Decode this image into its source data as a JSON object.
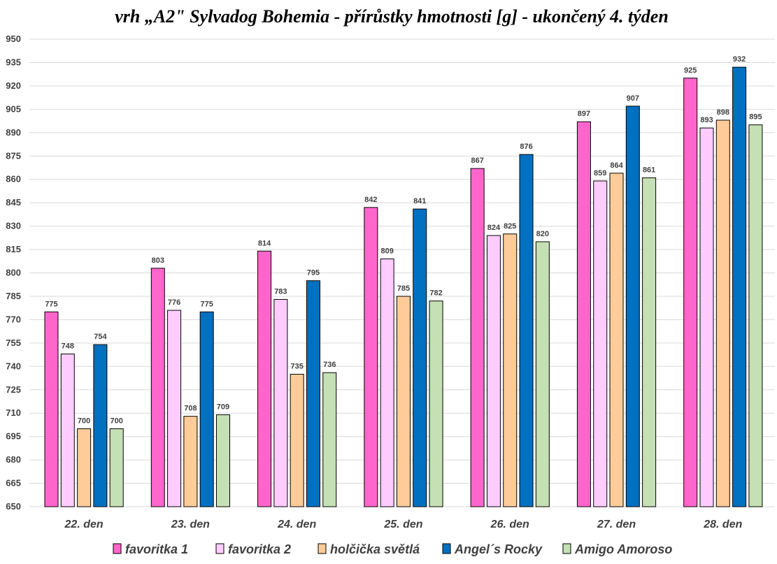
{
  "chart_data": {
    "type": "bar",
    "title": "vrh „A2\" Sylvadog Bohemia - přírůstky hmotnosti [g] - ukončený 4. týden",
    "categories": [
      "22. den",
      "23. den",
      "24. den",
      "25. den",
      "26. den",
      "27. den",
      "28. den"
    ],
    "series": [
      {
        "name": "favoritka 1",
        "color": "#ff66cc",
        "values": [
          775,
          803,
          814,
          842,
          867,
          897,
          925
        ]
      },
      {
        "name": " favoritka 2",
        "color": "#ffccff",
        "values": [
          748,
          776,
          783,
          809,
          824,
          859,
          893
        ]
      },
      {
        "name": "holčička světlá",
        "color": "#ffcc99",
        "values": [
          700,
          708,
          735,
          785,
          825,
          864,
          898
        ]
      },
      {
        "name": "Angel´s Rocky",
        "color": "#0070c0",
        "values": [
          754,
          775,
          795,
          841,
          876,
          907,
          932
        ]
      },
      {
        "name": "Amigo Amoroso",
        "color": "#c5e0b4",
        "values": [
          700,
          709,
          736,
          782,
          820,
          861,
          895
        ]
      }
    ],
    "ylim": [
      650,
      950
    ],
    "ytick_step": 15,
    "grid": true,
    "legend_position": "bottom",
    "data_labels": true
  }
}
